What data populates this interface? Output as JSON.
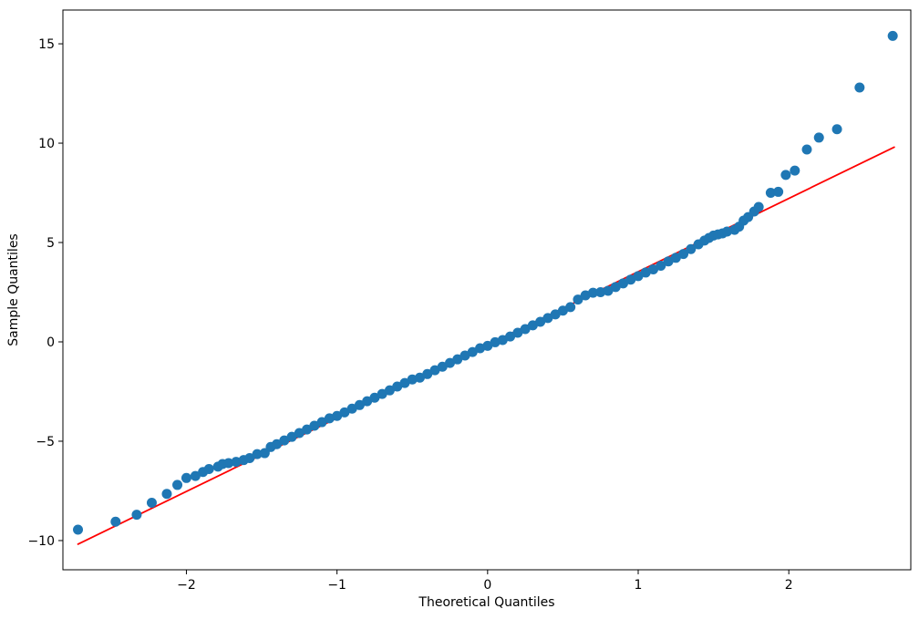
{
  "figure": {
    "background": "#ffffff",
    "text_color": "#000000",
    "axis_color": "#000000"
  },
  "chart_data": {
    "type": "scatter",
    "title": "",
    "xlabel": "Theoretical Quantiles",
    "ylabel": "Sample Quantiles",
    "xlim": [
      -2.82,
      2.81
    ],
    "ylim": [
      -11.47,
      16.7
    ],
    "grid": false,
    "legend": null,
    "marker_color": "#1f77b4",
    "marker_radius": 5.5,
    "xticks": {
      "values": [
        -2,
        -1,
        0,
        1,
        2
      ],
      "labels": [
        "−2",
        "−1",
        "0",
        "1",
        "2"
      ]
    },
    "yticks": {
      "values": [
        -10,
        -5,
        0,
        5,
        10,
        15
      ],
      "labels": [
        "−10",
        "−5",
        "0",
        "5",
        "10",
        "15"
      ]
    },
    "reference_line": {
      "x1": -2.72,
      "y1": -10.18,
      "x2": 2.7,
      "y2": 9.8,
      "color": "#ff0000",
      "width": 1.8
    },
    "points": [
      [
        -2.72,
        -9.45
      ],
      [
        -2.47,
        -9.05
      ],
      [
        -2.33,
        -8.7
      ],
      [
        -2.23,
        -8.1
      ],
      [
        -2.13,
        -7.65
      ],
      [
        -2.06,
        -7.2
      ],
      [
        -2.0,
        -6.85
      ],
      [
        -1.94,
        -6.75
      ],
      [
        -1.89,
        -6.55
      ],
      [
        -1.85,
        -6.4
      ],
      [
        -1.79,
        -6.28
      ],
      [
        -1.76,
        -6.15
      ],
      [
        -1.72,
        -6.1
      ],
      [
        -1.67,
        -6.04
      ],
      [
        -1.62,
        -5.95
      ],
      [
        -1.58,
        -5.85
      ],
      [
        -1.53,
        -5.65
      ],
      [
        -1.48,
        -5.6
      ],
      [
        -1.44,
        -5.29
      ],
      [
        -1.4,
        -5.15
      ],
      [
        -1.35,
        -4.96
      ],
      [
        -1.3,
        -4.78
      ],
      [
        -1.25,
        -4.59
      ],
      [
        -1.2,
        -4.41
      ],
      [
        -1.15,
        -4.22
      ],
      [
        -1.1,
        -4.04
      ],
      [
        -1.05,
        -3.85
      ],
      [
        -1.0,
        -3.73
      ],
      [
        -0.95,
        -3.55
      ],
      [
        -0.9,
        -3.36
      ],
      [
        -0.85,
        -3.18
      ],
      [
        -0.8,
        -2.99
      ],
      [
        -0.75,
        -2.81
      ],
      [
        -0.7,
        -2.62
      ],
      [
        -0.65,
        -2.44
      ],
      [
        -0.6,
        -2.25
      ],
      [
        -0.55,
        -2.07
      ],
      [
        -0.5,
        -1.89
      ],
      [
        -0.45,
        -1.8
      ],
      [
        -0.4,
        -1.62
      ],
      [
        -0.35,
        -1.43
      ],
      [
        -0.3,
        -1.25
      ],
      [
        -0.25,
        -1.06
      ],
      [
        -0.2,
        -0.88
      ],
      [
        -0.15,
        -0.69
      ],
      [
        -0.1,
        -0.51
      ],
      [
        -0.05,
        -0.32
      ],
      [
        0.0,
        -0.2
      ],
      [
        0.05,
        -0.02
      ],
      [
        0.1,
        0.09
      ],
      [
        0.15,
        0.27
      ],
      [
        0.2,
        0.46
      ],
      [
        0.25,
        0.64
      ],
      [
        0.3,
        0.83
      ],
      [
        0.35,
        1.01
      ],
      [
        0.4,
        1.2
      ],
      [
        0.45,
        1.38
      ],
      [
        0.5,
        1.57
      ],
      [
        0.55,
        1.75
      ],
      [
        0.6,
        2.13
      ],
      [
        0.65,
        2.34
      ],
      [
        0.7,
        2.47
      ],
      [
        0.75,
        2.5
      ],
      [
        0.8,
        2.57
      ],
      [
        0.85,
        2.76
      ],
      [
        0.9,
        2.94
      ],
      [
        0.95,
        3.13
      ],
      [
        1.0,
        3.31
      ],
      [
        1.05,
        3.49
      ],
      [
        1.1,
        3.65
      ],
      [
        1.15,
        3.83
      ],
      [
        1.2,
        4.05
      ],
      [
        1.25,
        4.23
      ],
      [
        1.3,
        4.42
      ],
      [
        1.35,
        4.67
      ],
      [
        1.4,
        4.91
      ],
      [
        1.44,
        5.1
      ],
      [
        1.47,
        5.23
      ],
      [
        1.5,
        5.35
      ],
      [
        1.53,
        5.41
      ],
      [
        1.56,
        5.46
      ],
      [
        1.59,
        5.55
      ],
      [
        1.64,
        5.64
      ],
      [
        1.67,
        5.8
      ],
      [
        1.7,
        6.1
      ],
      [
        1.73,
        6.28
      ],
      [
        1.77,
        6.56
      ],
      [
        1.8,
        6.79
      ],
      [
        1.88,
        7.5
      ],
      [
        1.93,
        7.55
      ],
      [
        1.98,
        8.4
      ],
      [
        2.04,
        8.62
      ],
      [
        2.12,
        9.68
      ],
      [
        2.2,
        10.28
      ],
      [
        2.32,
        10.7
      ],
      [
        2.47,
        12.8
      ],
      [
        2.69,
        15.4
      ]
    ]
  }
}
